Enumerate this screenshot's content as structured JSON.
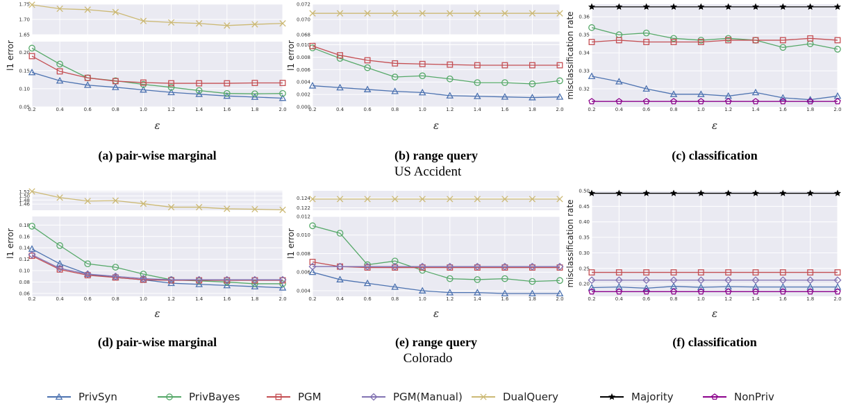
{
  "legend": [
    {
      "name": "PrivSyn",
      "color": "#4c72b0",
      "marker": "triangle"
    },
    {
      "name": "PrivBayes",
      "color": "#55a868",
      "marker": "circle"
    },
    {
      "name": "PGM",
      "color": "#c44e52",
      "marker": "square"
    },
    {
      "name": "PGM(Manual)",
      "color": "#8172b2",
      "marker": "diamond"
    },
    {
      "name": "DualQuery",
      "color": "#ccb974",
      "marker": "x"
    },
    {
      "name": "Majority",
      "color": "#000000",
      "marker": "star"
    },
    {
      "name": "NonPriv",
      "color": "#8b008b",
      "marker": "pentagon"
    }
  ],
  "datasets": [
    "US Accident",
    "Colorado"
  ],
  "chart_data": [
    {
      "type": "line",
      "title": "(a) pair-wise marginal",
      "dataset": "US Accident",
      "xlabel": "ε",
      "ylabel": "l1 error",
      "x": [
        0.2,
        0.4,
        0.6,
        0.8,
        1.0,
        1.2,
        1.4,
        1.6,
        1.8,
        2.0
      ],
      "xticks": [
        "0.2",
        "0.4",
        "0.6",
        "0.8",
        "1.0",
        "1.2",
        "1.4",
        "1.6",
        "1.8",
        "2.0"
      ],
      "broken_axis": true,
      "upper": {
        "ylim": [
          1.65,
          1.75
        ],
        "yticks": [
          "1.65",
          "1.70",
          "1.75"
        ]
      },
      "lower": {
        "ylim": [
          0.05,
          0.23
        ],
        "yticks": [
          "0.05",
          "0.10",
          "0.15",
          "0.20"
        ]
      },
      "series": [
        {
          "name": "PrivSyn",
          "values": [
            0.145,
            0.122,
            0.11,
            0.104,
            0.097,
            0.09,
            0.085,
            0.08,
            0.077,
            0.074
          ]
        },
        {
          "name": "PrivBayes",
          "values": [
            0.212,
            0.168,
            0.13,
            0.122,
            0.112,
            0.104,
            0.095,
            0.087,
            0.086,
            0.087
          ]
        },
        {
          "name": "PGM",
          "values": [
            0.19,
            0.148,
            0.13,
            0.121,
            0.117,
            0.115,
            0.115,
            0.115,
            0.116,
            0.116
          ]
        },
        {
          "name": "DualQuery",
          "values": [
            1.748,
            1.735,
            1.732,
            1.724,
            1.695,
            1.69,
            1.687,
            1.68,
            1.684,
            1.687
          ]
        }
      ]
    },
    {
      "type": "line",
      "title": "(b) range query",
      "dataset": "US Accident",
      "xlabel": "ε",
      "ylabel": "l1 error",
      "x": [
        0.2,
        0.4,
        0.6,
        0.8,
        1.0,
        1.2,
        1.4,
        1.6,
        1.8,
        2.0
      ],
      "xticks": [
        "0.2",
        "0.4",
        "0.6",
        "0.8",
        "1.0",
        "1.2",
        "1.4",
        "1.6",
        "1.8",
        "2.0"
      ],
      "broken_axis": true,
      "upper": {
        "ylim": [
          0.068,
          0.072
        ],
        "yticks": [
          "0.068",
          "0.070",
          "0.072"
        ]
      },
      "lower": {
        "ylim": [
          0.0,
          0.0105
        ],
        "yticks": [
          "0.000",
          "0.002",
          "0.004",
          "0.006",
          "0.008",
          "0.010"
        ]
      },
      "series": [
        {
          "name": "PrivSyn",
          "values": [
            0.0034,
            0.0031,
            0.0028,
            0.0025,
            0.0023,
            0.0018,
            0.0017,
            0.0016,
            0.0015,
            0.0016
          ]
        },
        {
          "name": "PrivBayes",
          "values": [
            0.0095,
            0.0078,
            0.0063,
            0.0048,
            0.005,
            0.0045,
            0.0039,
            0.0039,
            0.0037,
            0.0042
          ]
        },
        {
          "name": "PGM",
          "values": [
            0.0098,
            0.0083,
            0.0075,
            0.007,
            0.0069,
            0.0068,
            0.0067,
            0.0067,
            0.0067,
            0.0067
          ]
        },
        {
          "name": "DualQuery",
          "values": [
            0.0708,
            0.0708,
            0.0708,
            0.0708,
            0.0708,
            0.0708,
            0.0708,
            0.0708,
            0.0708,
            0.0708
          ]
        }
      ]
    },
    {
      "type": "line",
      "title": "(c) classification",
      "dataset": "US Accident",
      "xlabel": "ε",
      "ylabel": "misclassification rate",
      "x": [
        0.2,
        0.4,
        0.6,
        0.8,
        1.0,
        1.2,
        1.4,
        1.6,
        1.8,
        2.0
      ],
      "xticks": [
        "0.2",
        "0.4",
        "0.6",
        "0.8",
        "1.0",
        "1.2",
        "1.4",
        "1.6",
        "1.8",
        "2.0"
      ],
      "ylim": [
        0.31,
        0.367
      ],
      "yticks": [
        "0.32",
        "0.33",
        "0.34",
        "0.35",
        "0.36"
      ],
      "series": [
        {
          "name": "PrivSyn",
          "values": [
            0.327,
            0.324,
            0.32,
            0.317,
            0.317,
            0.316,
            0.318,
            0.315,
            0.314,
            0.316
          ]
        },
        {
          "name": "PrivBayes",
          "values": [
            0.354,
            0.35,
            0.351,
            0.348,
            0.347,
            0.348,
            0.347,
            0.343,
            0.345,
            0.342
          ]
        },
        {
          "name": "PGM",
          "values": [
            0.346,
            0.347,
            0.346,
            0.346,
            0.346,
            0.347,
            0.347,
            0.347,
            0.348,
            0.347
          ]
        },
        {
          "name": "Majority",
          "values": [
            0.3655,
            0.3655,
            0.3655,
            0.3655,
            0.3655,
            0.3655,
            0.3655,
            0.3655,
            0.3655,
            0.3655
          ]
        },
        {
          "name": "NonPriv",
          "values": [
            0.313,
            0.313,
            0.313,
            0.313,
            0.313,
            0.313,
            0.313,
            0.313,
            0.313,
            0.313
          ]
        }
      ]
    },
    {
      "type": "line",
      "title": "(d) pair-wise marginal",
      "dataset": "Colorado",
      "xlabel": "ε",
      "ylabel": "l1 error",
      "x": [
        0.2,
        0.4,
        0.6,
        0.8,
        1.0,
        1.2,
        1.4,
        1.6,
        1.8,
        2.0
      ],
      "xticks": [
        "0.2",
        "0.4",
        "0.6",
        "0.8",
        "1.0",
        "1.2",
        "1.4",
        "1.6",
        "1.8",
        "2.0"
      ],
      "broken_axis": true,
      "upper": {
        "ylim": [
          1.43,
          1.525
        ],
        "yticks": [
          "1.46",
          "1.48",
          "1.50",
          "1.52"
        ]
      },
      "lower": {
        "ylim": [
          0.055,
          0.195
        ],
        "yticks": [
          "0.06",
          "0.08",
          "0.10",
          "0.12",
          "0.14",
          "0.16",
          "0.18"
        ]
      },
      "series": [
        {
          "name": "PrivSyn",
          "values": [
            0.138,
            0.112,
            0.094,
            0.088,
            0.084,
            0.078,
            0.076,
            0.074,
            0.072,
            0.07
          ]
        },
        {
          "name": "PrivBayes",
          "values": [
            0.178,
            0.144,
            0.112,
            0.106,
            0.094,
            0.084,
            0.082,
            0.08,
            0.077,
            0.077
          ]
        },
        {
          "name": "PGM",
          "values": [
            0.126,
            0.102,
            0.092,
            0.088,
            0.084,
            0.083,
            0.083,
            0.083,
            0.083,
            0.083
          ]
        },
        {
          "name": "PGM(Manual)",
          "values": [
            0.128,
            0.104,
            0.094,
            0.09,
            0.086,
            0.084,
            0.084,
            0.084,
            0.084,
            0.084
          ]
        },
        {
          "name": "DualQuery",
          "values": [
            1.522,
            1.492,
            1.475,
            1.477,
            1.462,
            1.445,
            1.445,
            1.437,
            1.435,
            1.432
          ]
        }
      ]
    },
    {
      "type": "line",
      "title": "(e) range query",
      "dataset": "Colorado",
      "xlabel": "ε",
      "ylabel": "l1 error",
      "x": [
        0.2,
        0.4,
        0.6,
        0.8,
        1.0,
        1.2,
        1.4,
        1.6,
        1.8,
        2.0
      ],
      "xticks": [
        "0.2",
        "0.4",
        "0.6",
        "0.8",
        "1.0",
        "1.2",
        "1.4",
        "1.6",
        "1.8",
        "2.0"
      ],
      "broken_axis": true,
      "upper": {
        "ylim": [
          0.1215,
          0.1255
        ],
        "yticks": [
          "0.122",
          "0.124"
        ]
      },
      "lower": {
        "ylim": [
          0.0034,
          0.012
        ],
        "yticks": [
          "0.004",
          "0.006",
          "0.008",
          "0.010",
          "0.012"
        ]
      },
      "series": [
        {
          "name": "PrivSyn",
          "values": [
            0.006,
            0.0052,
            0.0048,
            0.0044,
            0.004,
            0.0038,
            0.0038,
            0.0037,
            0.0037,
            0.0037
          ]
        },
        {
          "name": "PrivBayes",
          "values": [
            0.011,
            0.0102,
            0.0068,
            0.0072,
            0.0062,
            0.0053,
            0.0052,
            0.0053,
            0.005,
            0.0051
          ]
        },
        {
          "name": "PGM",
          "values": [
            0.0071,
            0.0066,
            0.0065,
            0.0065,
            0.0065,
            0.0065,
            0.0065,
            0.0065,
            0.0065,
            0.0065
          ]
        },
        {
          "name": "PGM(Manual)",
          "values": [
            0.0066,
            0.0066,
            0.0066,
            0.0066,
            0.0066,
            0.0066,
            0.0066,
            0.0066,
            0.0066,
            0.0066
          ]
        },
        {
          "name": "DualQuery",
          "values": [
            0.1238,
            0.1238,
            0.1238,
            0.1238,
            0.1238,
            0.1238,
            0.1238,
            0.1238,
            0.1238,
            0.1238
          ]
        }
      ]
    },
    {
      "type": "line",
      "title": "(f) classification",
      "dataset": "Colorado",
      "xlabel": "ε",
      "ylabel": "misclassification rate",
      "x": [
        0.2,
        0.4,
        0.6,
        0.8,
        1.0,
        1.2,
        1.4,
        1.6,
        1.8,
        2.0
      ],
      "xticks": [
        "0.2",
        "0.4",
        "0.6",
        "0.8",
        "1.0",
        "1.2",
        "1.4",
        "1.6",
        "1.8",
        "2.0"
      ],
      "ylim": [
        0.16,
        0.5
      ],
      "yticks": [
        "0.20",
        "0.25",
        "0.30",
        "0.35",
        "0.40",
        "0.45",
        "0.50"
      ],
      "series": [
        {
          "name": "PrivSyn",
          "values": [
            0.188,
            0.19,
            0.186,
            0.192,
            0.189,
            0.191,
            0.19,
            0.19,
            0.19,
            0.19
          ]
        },
        {
          "name": "PGM",
          "values": [
            0.237,
            0.237,
            0.237,
            0.237,
            0.237,
            0.237,
            0.237,
            0.237,
            0.237,
            0.237
          ]
        },
        {
          "name": "PGM(Manual)",
          "values": [
            0.212,
            0.212,
            0.212,
            0.212,
            0.212,
            0.212,
            0.212,
            0.212,
            0.212,
            0.212
          ]
        },
        {
          "name": "Majority",
          "values": [
            0.492,
            0.492,
            0.492,
            0.492,
            0.492,
            0.492,
            0.492,
            0.492,
            0.492,
            0.492
          ]
        },
        {
          "name": "NonPriv",
          "values": [
            0.175,
            0.175,
            0.175,
            0.175,
            0.175,
            0.175,
            0.175,
            0.175,
            0.175,
            0.175
          ]
        }
      ]
    }
  ]
}
